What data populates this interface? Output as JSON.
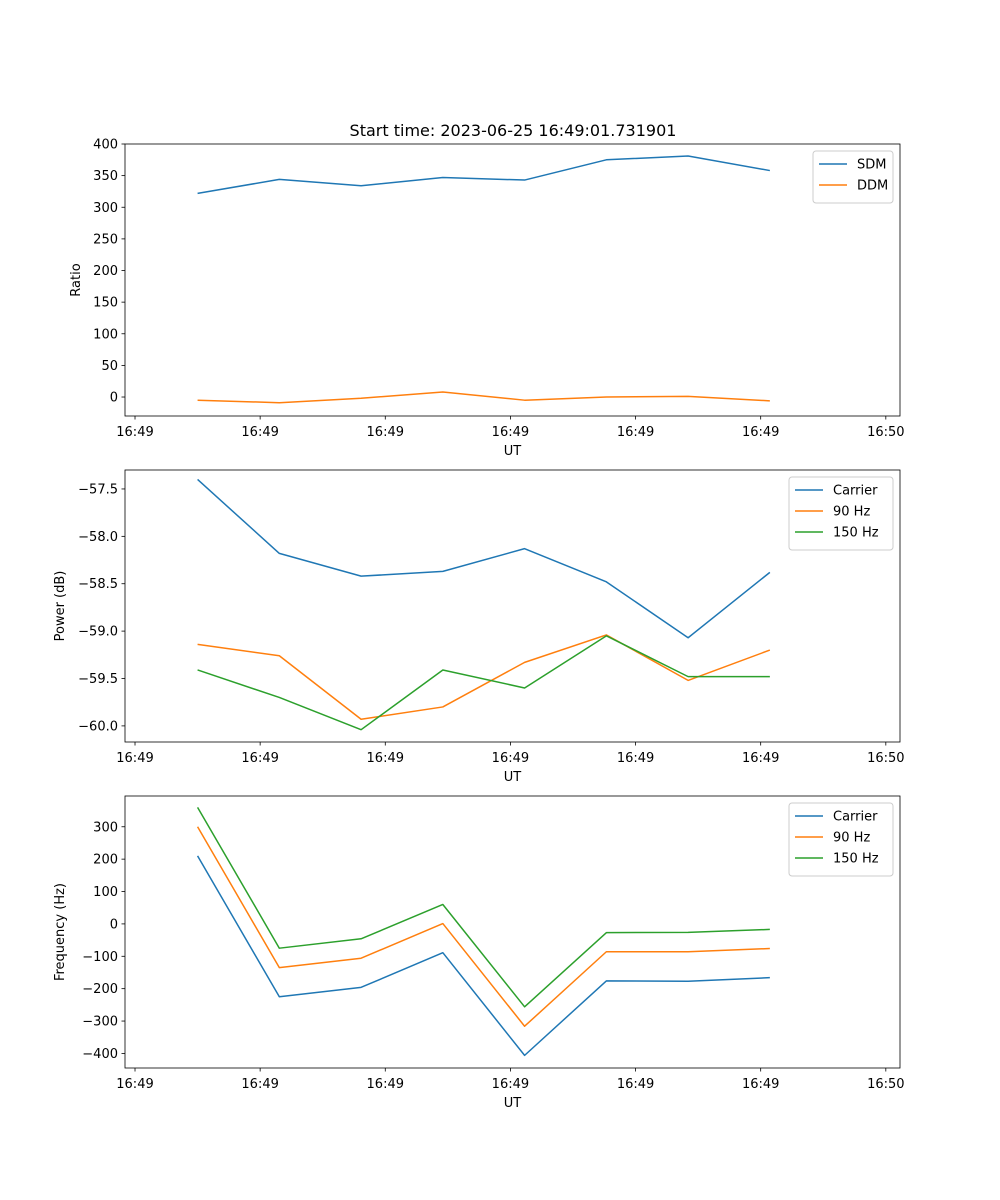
{
  "figure": {
    "title": "Start time: 2023-06-25 16:49:01.731901"
  },
  "chart_data": [
    {
      "type": "line",
      "xlabel": "UT",
      "ylabel": "Ratio",
      "ylim": [
        -30,
        400
      ],
      "yticks": [
        0,
        50,
        100,
        150,
        200,
        250,
        300,
        350,
        400
      ],
      "xlim": [
        -0.12,
        9.17
      ],
      "xticks": [
        0,
        1.5,
        3,
        4.5,
        6,
        7.5,
        9
      ],
      "xtick_labels": [
        "16:49",
        "16:49",
        "16:49",
        "16:49",
        "16:49",
        "16:49",
        "16:50"
      ],
      "x": [
        0.75,
        1.73,
        2.71,
        3.69,
        4.67,
        5.65,
        6.63,
        7.61
      ],
      "legend": "top-right",
      "series": [
        {
          "name": "SDM",
          "color": "#1f77b4",
          "values": [
            322,
            344,
            334,
            347,
            343,
            375,
            381,
            358
          ]
        },
        {
          "name": "DDM",
          "color": "#ff7f0e",
          "values": [
            -5,
            -9,
            -2,
            8,
            -5,
            0,
            1,
            -6
          ]
        }
      ]
    },
    {
      "type": "line",
      "xlabel": "UT",
      "ylabel": "Power (dB)",
      "ylim": [
        -60.17,
        -57.3
      ],
      "yticks": [
        -60.0,
        -59.5,
        -59.0,
        -58.5,
        -58.0,
        -57.5
      ],
      "ytick_labels": [
        "−60.0",
        "−59.5",
        "−59.0",
        "−58.5",
        "−58.0",
        "−57.5"
      ],
      "xlim": [
        -0.12,
        9.17
      ],
      "xticks": [
        0,
        1.5,
        3,
        4.5,
        6,
        7.5,
        9
      ],
      "xtick_labels": [
        "16:49",
        "16:49",
        "16:49",
        "16:49",
        "16:49",
        "16:49",
        "16:50"
      ],
      "x": [
        0.75,
        1.73,
        2.71,
        3.69,
        4.67,
        5.65,
        6.63,
        7.61
      ],
      "legend": "top-right",
      "series": [
        {
          "name": "Carrier",
          "color": "#1f77b4",
          "values": [
            -57.4,
            -58.18,
            -58.42,
            -58.37,
            -58.13,
            -58.48,
            -59.07,
            -58.38
          ]
        },
        {
          "name": "90 Hz",
          "color": "#ff7f0e",
          "values": [
            -59.14,
            -59.26,
            -59.93,
            -59.8,
            -59.33,
            -59.04,
            -59.52,
            -59.2
          ]
        },
        {
          "name": "150 Hz",
          "color": "#2ca02c",
          "values": [
            -59.41,
            -59.7,
            -60.04,
            -59.41,
            -59.6,
            -59.05,
            -59.48,
            -59.48
          ]
        }
      ]
    },
    {
      "type": "line",
      "xlabel": "UT",
      "ylabel": "Frequency (Hz)",
      "ylim": [
        -445,
        395
      ],
      "yticks": [
        -400,
        -300,
        -200,
        -100,
        0,
        100,
        200,
        300
      ],
      "ytick_labels": [
        "−400",
        "−300",
        "−200",
        "−100",
        "0",
        "100",
        "200",
        "300"
      ],
      "xlim": [
        -0.12,
        9.17
      ],
      "xticks": [
        0,
        1.5,
        3,
        4.5,
        6,
        7.5,
        9
      ],
      "xtick_labels": [
        "16:49",
        "16:49",
        "16:49",
        "16:49",
        "16:49",
        "16:49",
        "16:50"
      ],
      "x": [
        0.75,
        1.73,
        2.71,
        3.69,
        4.67,
        5.65,
        6.63,
        7.61
      ],
      "legend": "top-right",
      "series": [
        {
          "name": "Carrier",
          "color": "#1f77b4",
          "values": [
            210,
            -225,
            -196,
            -89,
            -406,
            -176,
            -177,
            -166
          ]
        },
        {
          "name": "90 Hz",
          "color": "#ff7f0e",
          "values": [
            300,
            -135,
            -106,
            1,
            -316,
            -86,
            -86,
            -76
          ]
        },
        {
          "name": "150 Hz",
          "color": "#2ca02c",
          "values": [
            360,
            -75,
            -46,
            60,
            -256,
            -27,
            -26,
            -17
          ]
        }
      ]
    }
  ]
}
